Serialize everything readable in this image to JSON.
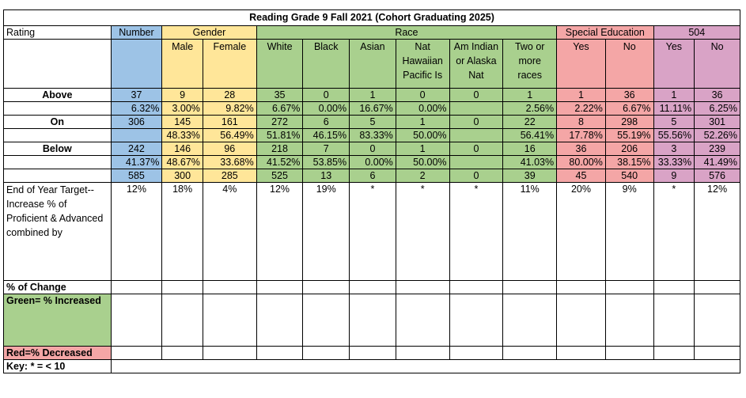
{
  "title": "Reading Grade 9 Fall 2021  (Cohort Graduating 2025)",
  "headers": {
    "rating": "Rating",
    "number": "Number",
    "gender": "Gender",
    "race": "Race",
    "special_ed": "Special Education",
    "s504": "504"
  },
  "subheaders": [
    "Male",
    "Female",
    "White",
    "Black",
    "Asian",
    "Nat Hawaiian Pacific Is",
    "Am Indian or Alaska Nat",
    "Two or more races",
    "Yes",
    "No",
    "Yes",
    "No"
  ],
  "rows": [
    {
      "label": "Above",
      "values": [
        "37",
        "9",
        "28",
        "35",
        "0",
        "1",
        "0",
        "0",
        "1",
        "1",
        "36",
        "1",
        "36"
      ]
    },
    {
      "label": "",
      "values": [
        "6.32%",
        "3.00%",
        "9.82%",
        "6.67%",
        "0.00%",
        "16.67%",
        "0.00%",
        "",
        "2.56%",
        "2.22%",
        "6.67%",
        "11.11%",
        "6.25%"
      ]
    },
    {
      "label": "On",
      "values": [
        "306",
        "145",
        "161",
        "272",
        "6",
        "5",
        "1",
        "0",
        "22",
        "8",
        "298",
        "5",
        "301"
      ]
    },
    {
      "label": "",
      "values": [
        "",
        "48.33%",
        "56.49%",
        "51.81%",
        "46.15%",
        "83.33%",
        "50.00%",
        "",
        "56.41%",
        "17.78%",
        "55.19%",
        "55.56%",
        "52.26%"
      ]
    },
    {
      "label": "Below",
      "values": [
        "242",
        "146",
        "96",
        "218",
        "7",
        "0",
        "1",
        "0",
        "16",
        "36",
        "206",
        "3",
        "239"
      ]
    },
    {
      "label": "",
      "values": [
        "41.37%",
        "48.67%",
        "33.68%",
        "41.52%",
        "53.85%",
        "0.00%",
        "50.00%",
        "",
        "41.03%",
        "80.00%",
        "38.15%",
        "33.33%",
        "41.49%"
      ]
    },
    {
      "label": "",
      "values": [
        "585",
        "300",
        "285",
        "525",
        "13",
        "6",
        "2",
        "0",
        "39",
        "45",
        "540",
        "9",
        "576"
      ]
    }
  ],
  "target": {
    "label": "End of Year Target--Increase % of Proficient & Advanced combined  by",
    "values": [
      "12%",
      "18%",
      "4%",
      "12%",
      "19%",
      "*",
      "*",
      "*",
      "11%",
      "20%",
      "9%",
      "*",
      "12%"
    ]
  },
  "footer": {
    "change": "% of Change",
    "green": "Green= % Increased",
    "red": "Red=% Decreased",
    "key": "Key: * = < 10"
  }
}
